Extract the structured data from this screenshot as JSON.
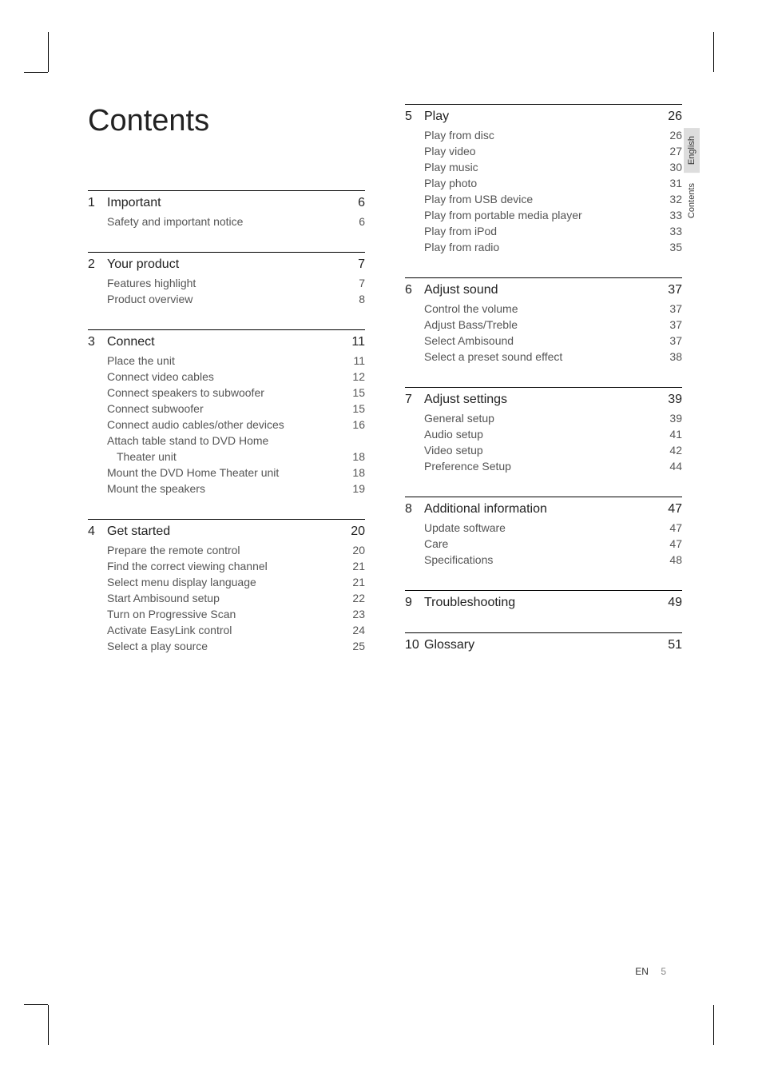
{
  "title": "Contents",
  "sideTabs": {
    "tab1": "English",
    "tab2": "Contents"
  },
  "footer": {
    "lang": "EN",
    "page": "5"
  },
  "sections": {
    "s1": {
      "num": "1",
      "title": "Important",
      "page": "6"
    },
    "s1i0": {
      "label": "Safety and important notice",
      "page": "6"
    },
    "s2": {
      "num": "2",
      "title": "Your product",
      "page": "7"
    },
    "s2i0": {
      "label": "Features highlight",
      "page": "7"
    },
    "s2i1": {
      "label": "Product overview",
      "page": "8"
    },
    "s3": {
      "num": "3",
      "title": "Connect",
      "page": "11"
    },
    "s3i0": {
      "label": "Place the unit",
      "page": "11"
    },
    "s3i1": {
      "label": "Connect video cables",
      "page": "12"
    },
    "s3i2": {
      "label": "Connect speakers to subwoofer",
      "page": "15"
    },
    "s3i3": {
      "label": "Connect subwoofer",
      "page": "15"
    },
    "s3i4": {
      "label": "Connect audio cables/other devices",
      "page": "16"
    },
    "s3i5a": {
      "label": "Attach table stand to DVD Home"
    },
    "s3i5b": {
      "label": "Theater unit",
      "page": "18"
    },
    "s3i6": {
      "label": "Mount the DVD Home Theater unit",
      "page": "18"
    },
    "s3i7": {
      "label": "Mount the speakers",
      "page": "19"
    },
    "s4": {
      "num": "4",
      "title": "Get started",
      "page": "20"
    },
    "s4i0": {
      "label": "Prepare the remote control",
      "page": "20"
    },
    "s4i1": {
      "label": "Find the correct viewing channel",
      "page": "21"
    },
    "s4i2": {
      "label": "Select menu display language",
      "page": "21"
    },
    "s4i3": {
      "label": "Start Ambisound setup",
      "page": "22"
    },
    "s4i4": {
      "label": "Turn on Progressive Scan",
      "page": "23"
    },
    "s4i5": {
      "label": "Activate EasyLink control",
      "page": "24"
    },
    "s4i6": {
      "label": "Select a play source",
      "page": "25"
    },
    "s5": {
      "num": "5",
      "title": "Play",
      "page": "26"
    },
    "s5i0": {
      "label": "Play from disc",
      "page": "26"
    },
    "s5i1": {
      "label": "Play video",
      "page": "27"
    },
    "s5i2": {
      "label": "Play music",
      "page": "30"
    },
    "s5i3": {
      "label": "Play photo",
      "page": "31"
    },
    "s5i4": {
      "label": "Play from USB device",
      "page": "32"
    },
    "s5i5": {
      "label": "Play from portable media player",
      "page": "33"
    },
    "s5i6": {
      "label": "Play from iPod",
      "page": "33"
    },
    "s5i7": {
      "label": "Play from radio",
      "page": "35"
    },
    "s6": {
      "num": "6",
      "title": "Adjust sound",
      "page": "37"
    },
    "s6i0": {
      "label": "Control the volume",
      "page": "37"
    },
    "s6i1": {
      "label": "Adjust Bass/Treble",
      "page": "37"
    },
    "s6i2": {
      "label": "Select Ambisound",
      "page": "37"
    },
    "s6i3": {
      "label": "Select a preset sound effect",
      "page": "38"
    },
    "s7": {
      "num": "7",
      "title": "Adjust settings",
      "page": "39"
    },
    "s7i0": {
      "label": "General setup",
      "page": "39"
    },
    "s7i1": {
      "label": "Audio setup",
      "page": "41"
    },
    "s7i2": {
      "label": "Video setup",
      "page": "42"
    },
    "s7i3": {
      "label": "Preference Setup",
      "page": "44"
    },
    "s8": {
      "num": "8",
      "title": "Additional information",
      "page": "47"
    },
    "s8i0": {
      "label": "Update software",
      "page": "47"
    },
    "s8i1": {
      "label": "Care",
      "page": "47"
    },
    "s8i2": {
      "label": "Specifications",
      "page": "48"
    },
    "s9": {
      "num": "9",
      "title": "Troubleshooting",
      "page": "49"
    },
    "s10": {
      "num": "10",
      "title": "Glossary",
      "page": "51"
    }
  }
}
